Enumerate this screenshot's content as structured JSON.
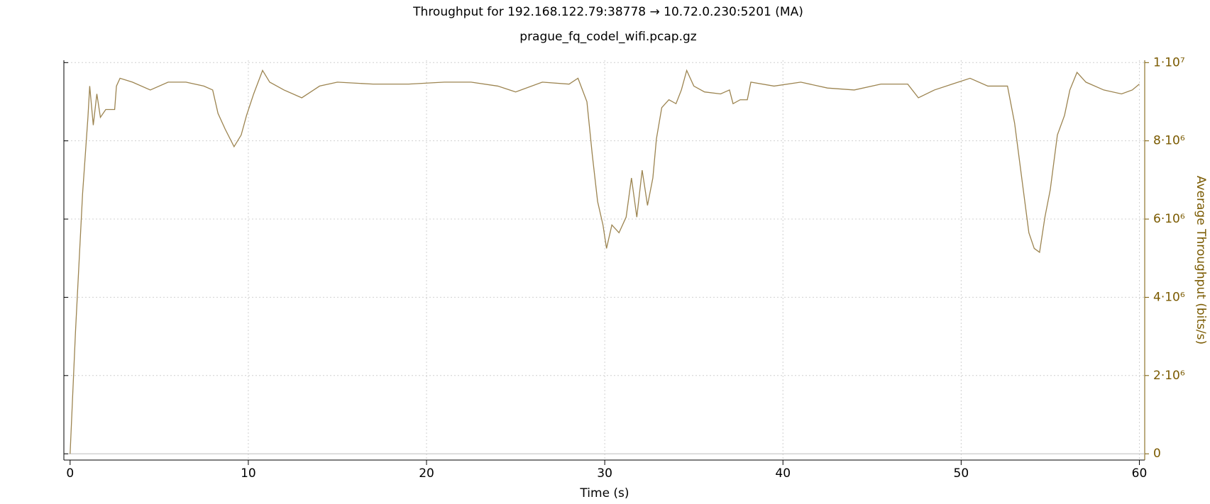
{
  "chart_data": {
    "type": "line",
    "title": "Throughput for 192.168.122.79:38778 → 10.72.0.230:5201 (MA)",
    "subtitle": "prague_fq_codel_wifi.pcap.gz",
    "x_label": "Time (s)",
    "y_label": "Average Throughput (bits/s)",
    "xlim": [
      -0.35,
      60.3
    ],
    "ylim": [
      -160000,
      10060000
    ],
    "xticks": [
      0,
      10,
      20,
      30,
      40,
      50,
      60
    ],
    "yticks": [
      0,
      {
        "value": 2000000,
        "label": "2·10⁶"
      },
      {
        "value": 4000000,
        "label": "4·10⁶"
      },
      {
        "value": 6000000,
        "label": "6·10⁶"
      },
      {
        "value": 8000000,
        "label": "8·10⁶"
      },
      {
        "value": 10000000,
        "label": "1·10⁷"
      }
    ],
    "grid": true,
    "series": [
      {
        "color": "#9c8450",
        "x": [
          0,
          0.3,
          0.7,
          1.0,
          1.1,
          1.3,
          1.5,
          1.7,
          2.0,
          2.5,
          2.6,
          2.8,
          3.5,
          4.5,
          5.5,
          6.5,
          7.5,
          8.0,
          8.3,
          8.7,
          9.2,
          9.6,
          9.9,
          10.3,
          10.8,
          11.2,
          12.0,
          13.0,
          14.0,
          15.0,
          17.0,
          19.0,
          21.0,
          22.5,
          24.0,
          25.0,
          26.5,
          28.0,
          28.5,
          29.0,
          29.3,
          29.6,
          29.9,
          30.1,
          30.4,
          30.8,
          31.2,
          31.5,
          31.8,
          32.1,
          32.4,
          32.7,
          32.9,
          33.2,
          33.6,
          34.0,
          34.3,
          34.6,
          35.0,
          35.6,
          36.5,
          37.0,
          37.2,
          37.6,
          38.0,
          38.2,
          39.5,
          41.0,
          42.5,
          44.0,
          45.5,
          47.0,
          47.6,
          48.5,
          49.5,
          50.5,
          51.5,
          52.6,
          53.0,
          53.4,
          53.8,
          54.1,
          54.4,
          54.7,
          55.0,
          55.4,
          55.8,
          56.1,
          56.5,
          57.0,
          58.0,
          59.0,
          59.6,
          60.0
        ],
        "values": [
          0,
          3100000,
          6650000,
          8600000,
          9400000,
          8400000,
          9200000,
          8600000,
          8800000,
          8800000,
          9400000,
          9600000,
          9500000,
          9300000,
          9500000,
          9500000,
          9400000,
          9300000,
          8700000,
          8300000,
          7850000,
          8150000,
          8650000,
          9200000,
          9800000,
          9500000,
          9300000,
          9100000,
          9400000,
          9500000,
          9450000,
          9450000,
          9500000,
          9500000,
          9400000,
          9250000,
          9500000,
          9450000,
          9600000,
          9000000,
          7650000,
          6450000,
          5850000,
          5250000,
          5850000,
          5650000,
          6050000,
          7050000,
          6050000,
          7250000,
          6350000,
          7050000,
          8050000,
          8850000,
          9050000,
          8950000,
          9300000,
          9800000,
          9400000,
          9250000,
          9200000,
          9300000,
          8950000,
          9050000,
          9050000,
          9500000,
          9400000,
          9500000,
          9350000,
          9300000,
          9450000,
          9450000,
          9100000,
          9300000,
          9450000,
          9600000,
          9400000,
          9400000,
          8450000,
          7050000,
          5650000,
          5250000,
          5150000,
          6050000,
          6750000,
          8150000,
          8650000,
          9300000,
          9750000,
          9500000,
          9300000,
          9200000,
          9300000,
          9450000
        ]
      }
    ]
  }
}
